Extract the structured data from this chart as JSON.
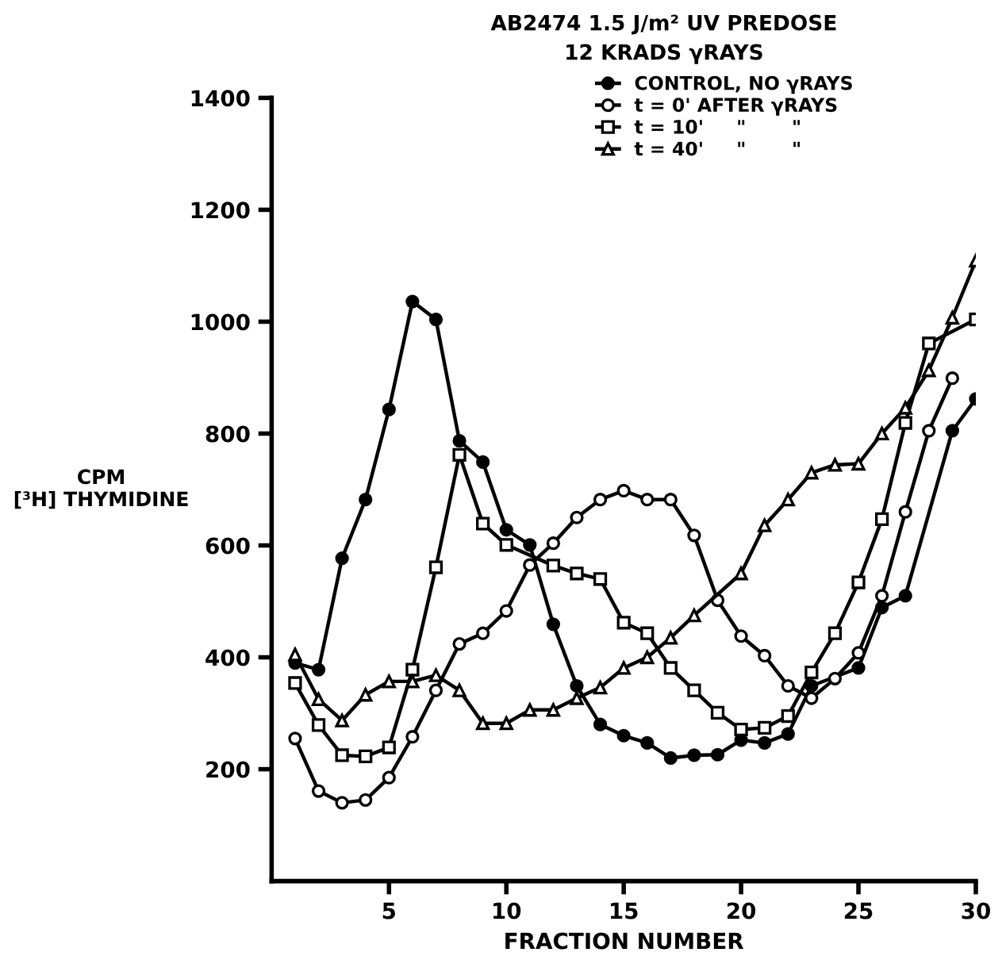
{
  "chart_data": {
    "type": "line",
    "title": "AB2474 1.5 J/m² UV PREDOSE",
    "subtitle": "12 KRADS γRAYS",
    "xlabel": "FRACTION NUMBER",
    "ylabel": "CPM\n[³H] THYMIDINE",
    "xlim": [
      0,
      30
    ],
    "ylim": [
      0,
      1400
    ],
    "xticks": [
      5,
      10,
      15,
      20,
      25,
      30
    ],
    "yticks": [
      200,
      400,
      600,
      800,
      1000,
      1200,
      1400
    ],
    "grid": false,
    "legend": "top right",
    "line_style": "solid",
    "series": [
      {
        "name": "CONTROL, NO γRAYS",
        "color": "#000000",
        "marker": "circle",
        "x": [
          1,
          2,
          3,
          4,
          5,
          6,
          7,
          8,
          9,
          10,
          11,
          12,
          13,
          14,
          15,
          16,
          17,
          18,
          19,
          20,
          21,
          22,
          23,
          25,
          26,
          27,
          29,
          30
        ],
        "values": [
          390,
          378,
          577,
          682,
          843,
          1036,
          1004,
          787,
          749,
          628,
          601,
          459,
          349,
          280,
          260,
          247,
          220,
          225,
          226,
          252,
          247,
          263,
          349,
          381,
          489,
          510,
          805,
          862
        ]
      },
      {
        "name": "t = 0' AFTER γRAYS",
        "color": "#000000",
        "marker": "circle",
        "x": [
          1,
          2,
          3,
          4,
          5,
          6,
          7,
          8,
          9,
          10,
          11,
          12,
          13,
          14,
          15,
          16,
          17,
          18,
          19,
          20,
          21,
          22,
          23,
          24,
          25,
          26,
          27,
          28,
          29
        ],
        "values": [
          255,
          161,
          140,
          145,
          185,
          258,
          341,
          424,
          443,
          483,
          565,
          604,
          650,
          682,
          698,
          682,
          682,
          618,
          502,
          438,
          403,
          349,
          327,
          362,
          408,
          510,
          660,
          805,
          899
        ]
      },
      {
        "name": "t = 10'     \"       \"",
        "color": "#000000",
        "marker": "square",
        "x": [
          1,
          2,
          3,
          4,
          5,
          6,
          7,
          8,
          9,
          10,
          12,
          13,
          14,
          15,
          16,
          17,
          18,
          19,
          20,
          21,
          22,
          23,
          24,
          25,
          26,
          27,
          28,
          30
        ],
        "values": [
          354,
          279,
          225,
          223,
          239,
          378,
          561,
          762,
          639,
          601,
          564,
          550,
          540,
          462,
          443,
          381,
          341,
          301,
          271,
          274,
          295,
          373,
          443,
          534,
          647,
          819,
          961,
          1004
        ]
      },
      {
        "name": "t = 40'     \"       \"",
        "color": "#000000",
        "marker": "triangle",
        "x": [
          1,
          2,
          3,
          4,
          5,
          6,
          7,
          8,
          9,
          10,
          11,
          12,
          13,
          14,
          15,
          16,
          17,
          18,
          20,
          21,
          22,
          23,
          24,
          25,
          26,
          27,
          28,
          29,
          30
        ],
        "values": [
          405,
          325,
          287,
          333,
          357,
          357,
          368,
          341,
          282,
          282,
          306,
          306,
          327,
          346,
          381,
          400,
          435,
          475,
          550,
          636,
          682,
          730,
          744,
          746,
          800,
          846,
          913,
          1007,
          1109
        ]
      }
    ]
  }
}
